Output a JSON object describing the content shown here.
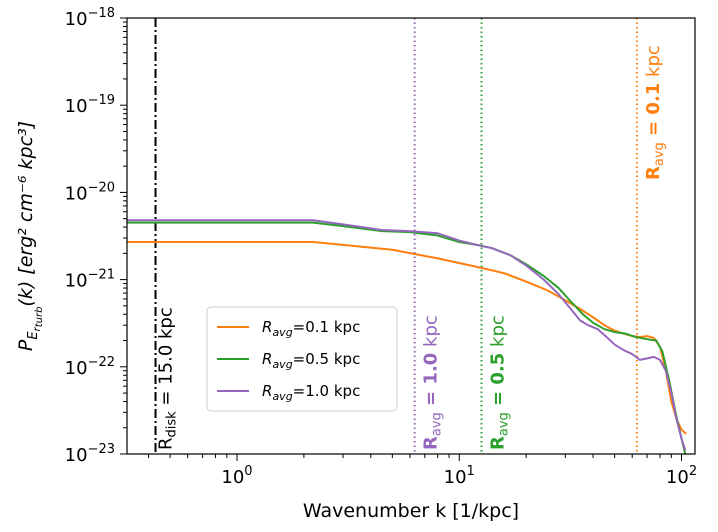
{
  "chart_data": {
    "type": "line",
    "xlabel": "Wavenumber k [1/kpc]",
    "ylabel_main": "P",
    "ylabel_sub": "E",
    "ylabel_subsub": "r",
    "ylabel_subsubsub": "turb",
    "ylabel_rest": "(k) [erg² cm⁻⁶ kpc³]",
    "xscale": "log",
    "yscale": "log",
    "xlim": [
      0.32,
      115
    ],
    "ylim": [
      1e-23,
      1e-18
    ],
    "x_ticks": [
      {
        "value": 1,
        "base": "10",
        "exp": "0"
      },
      {
        "value": 10,
        "base": "10",
        "exp": "1"
      },
      {
        "value": 100,
        "base": "10",
        "exp": "2"
      }
    ],
    "y_ticks": [
      {
        "value": 1e-23,
        "base": "10",
        "exp": "−23"
      },
      {
        "value": 1e-22,
        "base": "10",
        "exp": "−22"
      },
      {
        "value": 1e-21,
        "base": "10",
        "exp": "−21"
      },
      {
        "value": 1e-20,
        "base": "10",
        "exp": "−20"
      },
      {
        "value": 1e-19,
        "base": "10",
        "exp": "−19"
      },
      {
        "value": 1e-18,
        "base": "10",
        "exp": "−18"
      }
    ],
    "legend_position": "lower-left",
    "series": [
      {
        "name_main": "R",
        "name_sub": "avg",
        "name_rest": "=0.1 kpc",
        "color": "#ff7f0e",
        "points": [
          [
            0.32,
            2.7e-21
          ],
          [
            1,
            2.7e-21
          ],
          [
            2.2,
            2.7e-21
          ],
          [
            3,
            2.5e-21
          ],
          [
            5,
            2.2e-21
          ],
          [
            8,
            1.75e-21
          ],
          [
            12,
            1.4e-21
          ],
          [
            16,
            1.18e-21
          ],
          [
            20,
            9.5e-22
          ],
          [
            25,
            7.5e-22
          ],
          [
            30,
            5.8e-22
          ],
          [
            35,
            4.6e-22
          ],
          [
            40,
            3.7e-22
          ],
          [
            45,
            3e-22
          ],
          [
            50,
            2.6e-22
          ],
          [
            55,
            2.4e-22
          ],
          [
            60,
            2.25e-22
          ],
          [
            65,
            2.2e-22
          ],
          [
            70,
            2.25e-22
          ],
          [
            75,
            2.15e-22
          ],
          [
            80,
            1.7e-22
          ],
          [
            85,
            9e-23
          ],
          [
            90,
            4e-23
          ],
          [
            95,
            2.5e-23
          ],
          [
            100,
            1.9e-23
          ],
          [
            105,
            1.7e-23
          ]
        ]
      },
      {
        "name_main": "R",
        "name_sub": "avg",
        "name_rest": "=0.5 kpc",
        "color": "#2ca02c",
        "points": [
          [
            0.32,
            4.5e-21
          ],
          [
            1,
            4.5e-21
          ],
          [
            2.2,
            4.5e-21
          ],
          [
            3,
            4.1e-21
          ],
          [
            4.5,
            3.6e-21
          ],
          [
            6,
            3.5e-21
          ],
          [
            8,
            3.2e-21
          ],
          [
            10,
            2.7e-21
          ],
          [
            12,
            2.5e-21
          ],
          [
            14,
            2.3e-21
          ],
          [
            17,
            1.9e-21
          ],
          [
            20,
            1.5e-21
          ],
          [
            24,
            1.1e-21
          ],
          [
            28,
            8e-22
          ],
          [
            32,
            5.5e-22
          ],
          [
            36,
            4e-22
          ],
          [
            40,
            3.2e-22
          ],
          [
            45,
            2.7e-22
          ],
          [
            50,
            2.5e-22
          ],
          [
            56,
            2.4e-22
          ],
          [
            62,
            2.2e-22
          ],
          [
            68,
            2.1e-22
          ],
          [
            72,
            2.05e-22
          ],
          [
            77,
            2e-22
          ],
          [
            82,
            1.5e-22
          ],
          [
            88,
            7e-23
          ],
          [
            94,
            3e-23
          ],
          [
            100,
            1.5e-23
          ],
          [
            104,
            1e-23
          ]
        ]
      },
      {
        "name_main": "R",
        "name_sub": "avg",
        "name_rest": "=1.0 kpc",
        "color": "#9467bd",
        "points": [
          [
            0.32,
            4.8e-21
          ],
          [
            1,
            4.8e-21
          ],
          [
            2.2,
            4.8e-21
          ],
          [
            3,
            4.3e-21
          ],
          [
            4.5,
            3.7e-21
          ],
          [
            6,
            3.6e-21
          ],
          [
            8,
            3.4e-21
          ],
          [
            10,
            2.8e-21
          ],
          [
            12,
            2.5e-21
          ],
          [
            14,
            2.3e-21
          ],
          [
            17,
            1.9e-21
          ],
          [
            20,
            1.45e-21
          ],
          [
            24,
            1e-21
          ],
          [
            28,
            6.8e-22
          ],
          [
            32,
            4.5e-22
          ],
          [
            35,
            3.4e-22
          ],
          [
            38,
            3e-22
          ],
          [
            42,
            2.7e-22
          ],
          [
            46,
            2.2e-22
          ],
          [
            50,
            1.8e-22
          ],
          [
            55,
            1.55e-22
          ],
          [
            60,
            1.4e-22
          ],
          [
            65,
            1.2e-22
          ],
          [
            70,
            1.25e-22
          ],
          [
            75,
            1.3e-22
          ],
          [
            80,
            1.2e-22
          ],
          [
            85,
            9e-23
          ],
          [
            90,
            5e-23
          ],
          [
            95,
            2.5e-23
          ],
          [
            100,
            1.5e-23
          ],
          [
            104,
            1.1e-23
          ]
        ]
      }
    ],
    "vlines": [
      {
        "x": 0.43,
        "color": "#000000",
        "style": "dashdot",
        "label_main": "R",
        "label_sub": "disk",
        "label_rest": " = 15.0 kpc",
        "label_bold": false
      },
      {
        "x": 6.3,
        "color": "#9467bd",
        "style": "dotted",
        "label_main": "R",
        "label_sub": "avg",
        "label_eq": " = ",
        "label_bold_part": "1.0",
        "label_rest": " kpc",
        "label_bold": true
      },
      {
        "x": 12.6,
        "color": "#2ca02c",
        "style": "dotted",
        "label_main": "R",
        "label_sub": "avg",
        "label_eq": " = ",
        "label_bold_part": "0.5",
        "label_rest": " kpc",
        "label_bold": true
      },
      {
        "x": 63,
        "color": "#ff7f0e",
        "style": "dotted",
        "label_main": "R",
        "label_sub": "avg",
        "label_eq": " = ",
        "label_bold_part": "0.1",
        "label_rest": " kpc",
        "label_bold": true
      }
    ]
  }
}
